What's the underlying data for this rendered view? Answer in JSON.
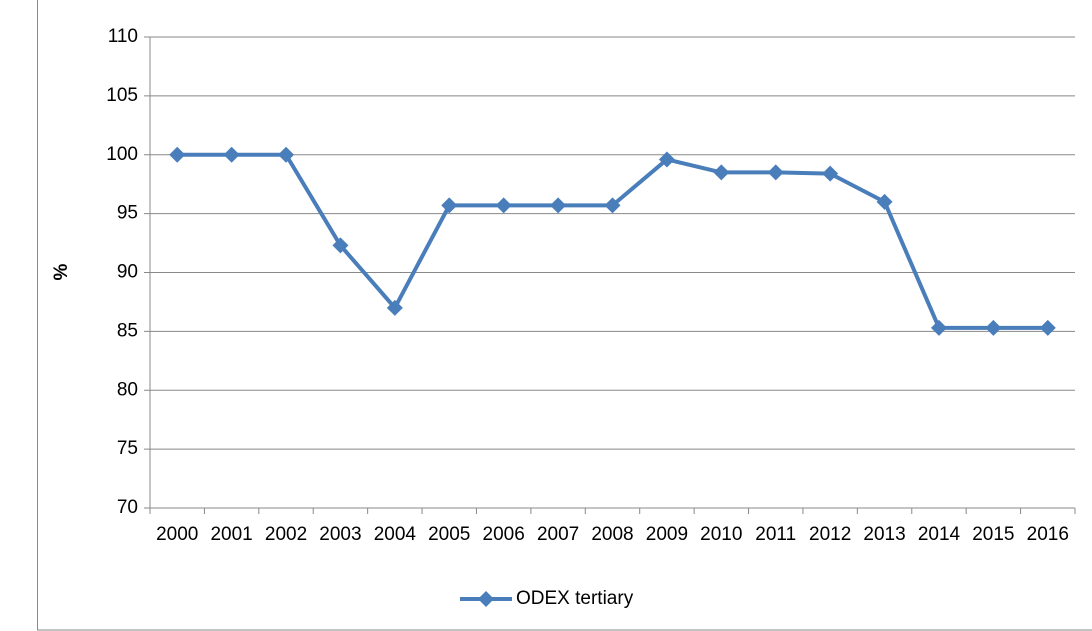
{
  "chart_data": {
    "type": "line",
    "y_label": "%",
    "categories": [
      "2000",
      "2001",
      "2002",
      "2003",
      "2004",
      "2005",
      "2006",
      "2007",
      "2008",
      "2009",
      "2010",
      "2011",
      "2012",
      "2013",
      "2014",
      "2015",
      "2016"
    ],
    "series": [
      {
        "name": "ODEX tertiary",
        "color": "#4a7ebb",
        "values": [
          100,
          100,
          100,
          92.3,
          87,
          95.7,
          95.7,
          95.7,
          95.7,
          99.6,
          98.5,
          98.5,
          98.4,
          96,
          85.3,
          85.3,
          85.3
        ]
      }
    ],
    "ylim": [
      70,
      110
    ],
    "yticks": [
      70,
      75,
      80,
      85,
      90,
      95,
      100,
      105,
      110
    ],
    "grid": true,
    "legend": "bottom"
  }
}
